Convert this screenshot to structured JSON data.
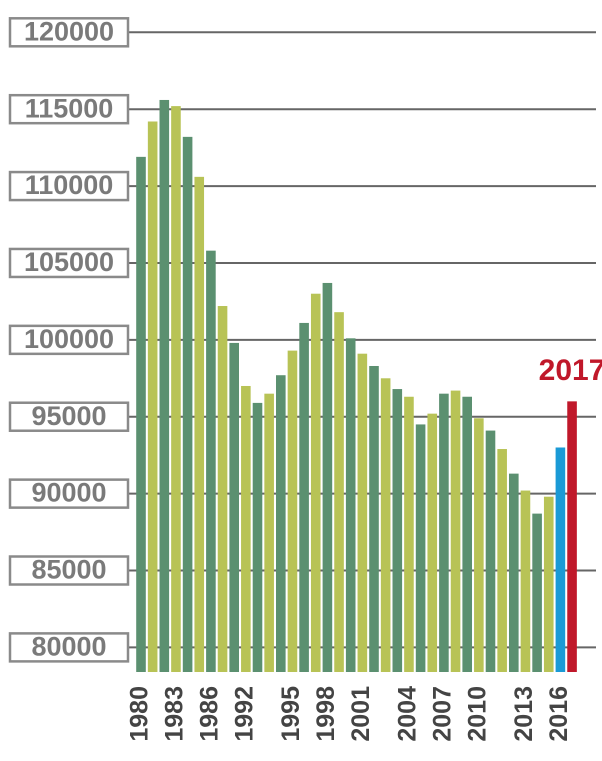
{
  "chart_data": {
    "type": "bar",
    "annotation": "2017",
    "categories": [
      "1980",
      null,
      null,
      "1983",
      null,
      null,
      "1986",
      null,
      null,
      "1992",
      null,
      null,
      null,
      "1995",
      null,
      null,
      "1998",
      null,
      null,
      "2001",
      null,
      null,
      null,
      "2004",
      null,
      null,
      "2007",
      null,
      null,
      "2010",
      null,
      null,
      null,
      "2013",
      null,
      null,
      "2016",
      null
    ],
    "values": [
      111900,
      114200,
      115600,
      115200,
      113200,
      110600,
      105800,
      102200,
      99800,
      97000,
      95900,
      96500,
      97700,
      99300,
      101100,
      103000,
      103700,
      101800,
      100100,
      99100,
      98300,
      97500,
      96800,
      96300,
      94500,
      95200,
      96500,
      96700,
      96300,
      94900,
      94100,
      92900,
      91300,
      90200,
      88700,
      89800,
      93000,
      96000
    ],
    "colors": [
      "#5b9070",
      "#b8c356",
      "#5b9070",
      "#b8c356",
      "#5b9070",
      "#b8c356",
      "#5b9070",
      "#b8c356",
      "#5b9070",
      "#b8c356",
      "#5b9070",
      "#b8c356",
      "#5b9070",
      "#b8c356",
      "#5b9070",
      "#b8c356",
      "#5b9070",
      "#b8c356",
      "#5b9070",
      "#b8c356",
      "#5b9070",
      "#b8c356",
      "#5b9070",
      "#b8c356",
      "#5b9070",
      "#b8c356",
      "#5b9070",
      "#b8c356",
      "#5b9070",
      "#b8c356",
      "#5b9070",
      "#b8c356",
      "#5b9070",
      "#b8c356",
      "#5b9070",
      "#b8c356",
      "#1a9ad6",
      "#c0182a"
    ],
    "ylim": [
      78400,
      120800
    ],
    "yticks": [
      80000,
      85000,
      90000,
      95000,
      100000,
      105000,
      110000,
      115000,
      120000
    ],
    "grid": true
  }
}
